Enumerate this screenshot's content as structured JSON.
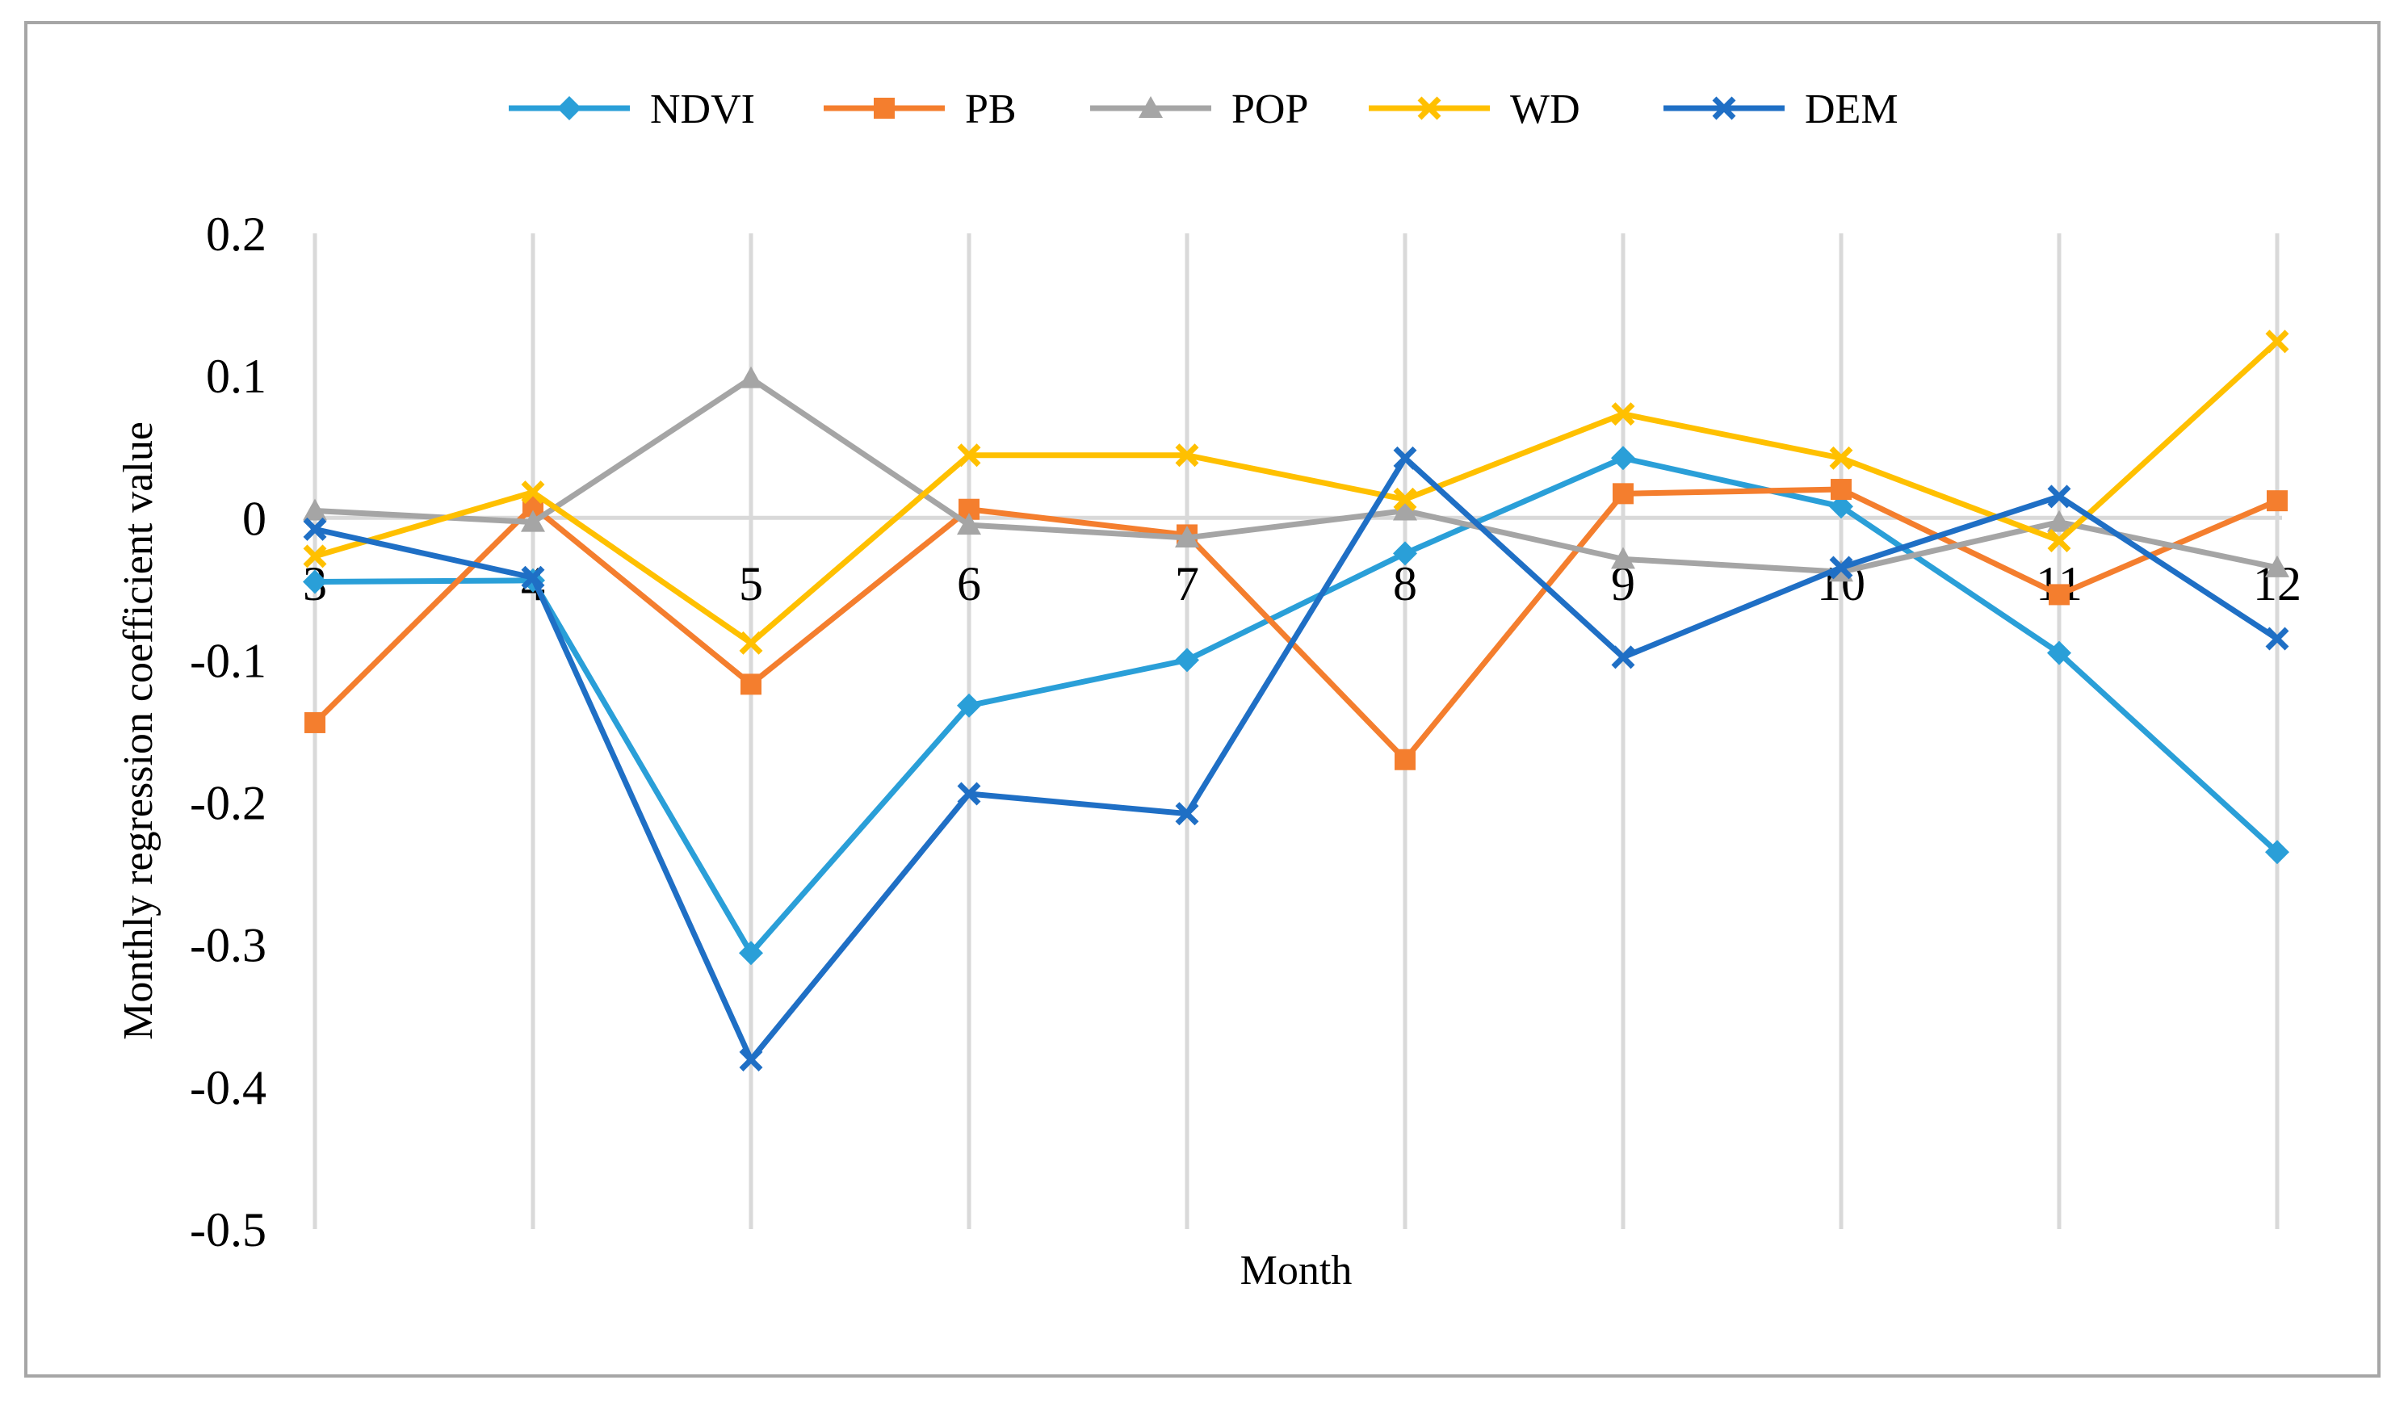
{
  "chart_data": {
    "type": "line",
    "title": "",
    "xlabel": "Month",
    "ylabel": "Monthly regression coefficient value",
    "categories": [
      "3",
      "4",
      "5",
      "6",
      "7",
      "8",
      "9",
      "10",
      "11",
      "12"
    ],
    "ylim": [
      -0.5,
      0.2
    ],
    "yticks": [
      "0.2",
      "0.1",
      "0",
      "-0.1",
      "-0.2",
      "-0.3",
      "-0.4",
      "-0.5"
    ],
    "ytick_values": [
      0.2,
      0.1,
      0,
      -0.1,
      -0.2,
      -0.3,
      -0.4,
      -0.5
    ],
    "grid": "vertical",
    "legend_position": "top",
    "series": [
      {
        "name": "NDVI",
        "color": "#2a9fd8",
        "marker": "diamond",
        "values": [
          -0.045,
          -0.044,
          -0.306,
          -0.132,
          -0.1,
          -0.025,
          0.042,
          0.008,
          -0.095,
          -0.235
        ]
      },
      {
        "name": "PB",
        "color": "#f47e2e",
        "marker": "square",
        "values": [
          -0.144,
          0.008,
          -0.117,
          0.006,
          -0.012,
          -0.17,
          0.017,
          0.02,
          -0.054,
          0.012
        ]
      },
      {
        "name": "POP",
        "color": "#a5a5a5",
        "marker": "triangle",
        "values": [
          0.005,
          -0.003,
          0.098,
          -0.005,
          -0.014,
          0.005,
          -0.029,
          -0.038,
          -0.003,
          -0.035
        ]
      },
      {
        "name": "WD",
        "color": "#ffc000",
        "marker": "x",
        "values": [
          -0.027,
          0.018,
          -0.088,
          0.044,
          0.044,
          0.013,
          0.073,
          0.042,
          -0.016,
          0.124
        ]
      },
      {
        "name": "DEM",
        "color": "#1f6fc5",
        "marker": "x",
        "values": [
          -0.008,
          -0.042,
          -0.381,
          -0.194,
          -0.208,
          0.042,
          -0.098,
          -0.035,
          0.015,
          -0.085
        ]
      }
    ]
  }
}
